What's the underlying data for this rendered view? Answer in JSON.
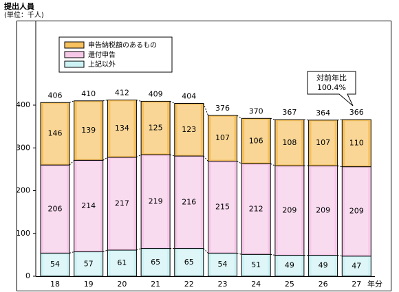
{
  "chart_data": {
    "type": "bar",
    "stacked": true,
    "ylabel": "提出人員",
    "yunit": "(単位：千人)",
    "xlabel": "年分",
    "ylim": [
      0,
      400
    ],
    "yticks": [
      0,
      100,
      200,
      300,
      400
    ],
    "categories": [
      "18",
      "19",
      "20",
      "21",
      "22",
      "23",
      "24",
      "25",
      "26",
      "27"
    ],
    "series": [
      {
        "name": "上記以外",
        "values": [
          54,
          57,
          61,
          65,
          65,
          54,
          51,
          49,
          49,
          47
        ],
        "color": "#ccf2f4"
      },
      {
        "name": "還付申告",
        "values": [
          206,
          214,
          217,
          219,
          216,
          215,
          212,
          209,
          209,
          209
        ],
        "color": "#f6c8e8"
      },
      {
        "name": "申告納税額のあるもの",
        "values": [
          146,
          139,
          134,
          125,
          123,
          107,
          106,
          108,
          107,
          110
        ],
        "color": "#f6c15e"
      }
    ],
    "totals": [
      406,
      410,
      412,
      409,
      404,
      376,
      370,
      367,
      364,
      366
    ],
    "legend_order": [
      "申告納税額のあるもの",
      "還付申告",
      "上記以外"
    ],
    "legend_position": "top-left",
    "grid": false,
    "annotation": {
      "line1": "対前年比",
      "line2": "100.4%"
    }
  }
}
